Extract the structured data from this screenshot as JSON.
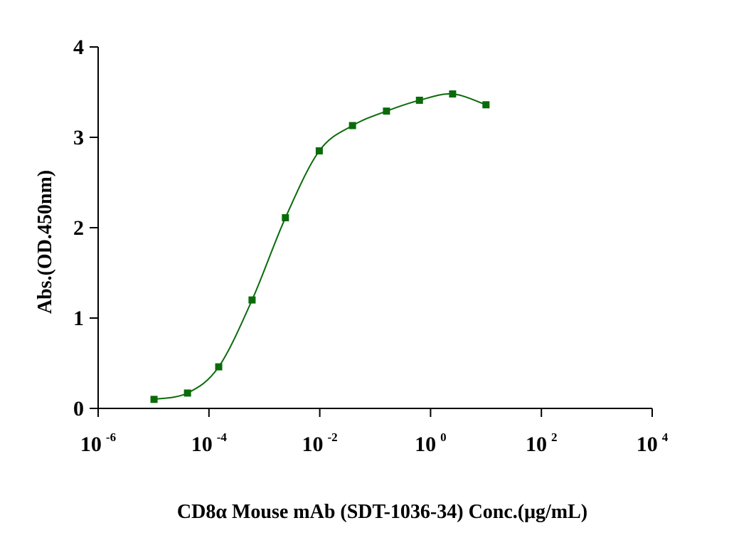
{
  "chart_data": {
    "type": "scatter",
    "title": "",
    "xlabel": "CD8α Mouse mAb (SDT-1036-34) Conc.(μg/mL)",
    "ylabel": "Abs.(OD.450nm)",
    "x_scale": "log10",
    "xlim": [
      1e-06,
      10000
    ],
    "ylim": [
      0,
      4
    ],
    "x_ticks": [
      {
        "base": "10",
        "exp": "-6",
        "value": 1e-06
      },
      {
        "base": "10",
        "exp": "-4",
        "value": 0.0001
      },
      {
        "base": "10",
        "exp": "-2",
        "value": 0.01
      },
      {
        "base": "10",
        "exp": "0",
        "value": 1
      },
      {
        "base": "10",
        "exp": "2",
        "value": 100
      },
      {
        "base": "10",
        "exp": "4",
        "value": 10000
      }
    ],
    "y_ticks": [
      "0",
      "1",
      "2",
      "3",
      "4"
    ],
    "grid": false,
    "legend": "none",
    "series": [
      {
        "color": "#0a6b0a",
        "marker": "square",
        "fit": "sigmoidal",
        "x": [
          1.02e-05,
          4.1e-05,
          0.00015,
          0.0006,
          0.0024,
          0.0098,
          0.039,
          0.16,
          0.63,
          2.5,
          10
        ],
        "y": [
          0.1,
          0.17,
          0.46,
          1.2,
          2.11,
          2.85,
          3.13,
          3.29,
          3.41,
          3.48,
          3.36
        ]
      }
    ]
  }
}
